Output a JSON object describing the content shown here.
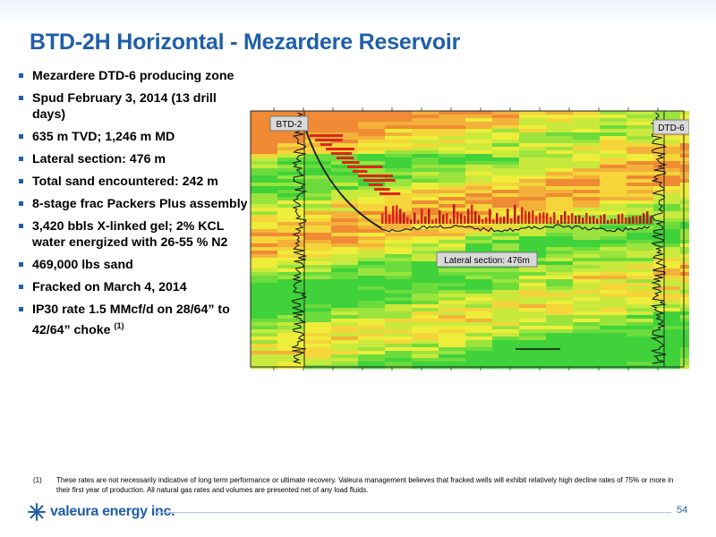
{
  "slide": {
    "title": "BTD-2H Horizontal - Mezardere Reservoir",
    "bullets": [
      "Mezardere DTD-6 producing zone",
      "Spud February 3, 2014 (13 drill days)",
      "635 m TVD; 1,246 m MD",
      "Lateral section: 476 m",
      "Total sand encountered: 242 m",
      "8-stage frac Packers Plus assembly",
      "3,420 bbls X-linked gel; 2% KCL water energized with 26-55 % N2",
      "469,000 lbs sand",
      "Fracked on March 4, 2014",
      "IP30 rate 1.5 MMcf/d on 28/64” to 42/64” choke"
    ],
    "last_bullet_ref": "(1)",
    "figure": {
      "left_well": "BTD-2",
      "right_well": "DTD-6",
      "lateral_label": "Lateral section: 476m"
    },
    "footnote": {
      "mark": "(1)",
      "text": "These rates are not necessarily indicative of long term performance or ultimate recovery. Valeura management believes that fracked wells will exhibit relatively high decline rates of 75% or more in their first year of production. All natural gas rates and volumes are presented net of any load fluids."
    },
    "footer": {
      "logo_text": "valeura energy inc.",
      "page_number": "54"
    }
  }
}
